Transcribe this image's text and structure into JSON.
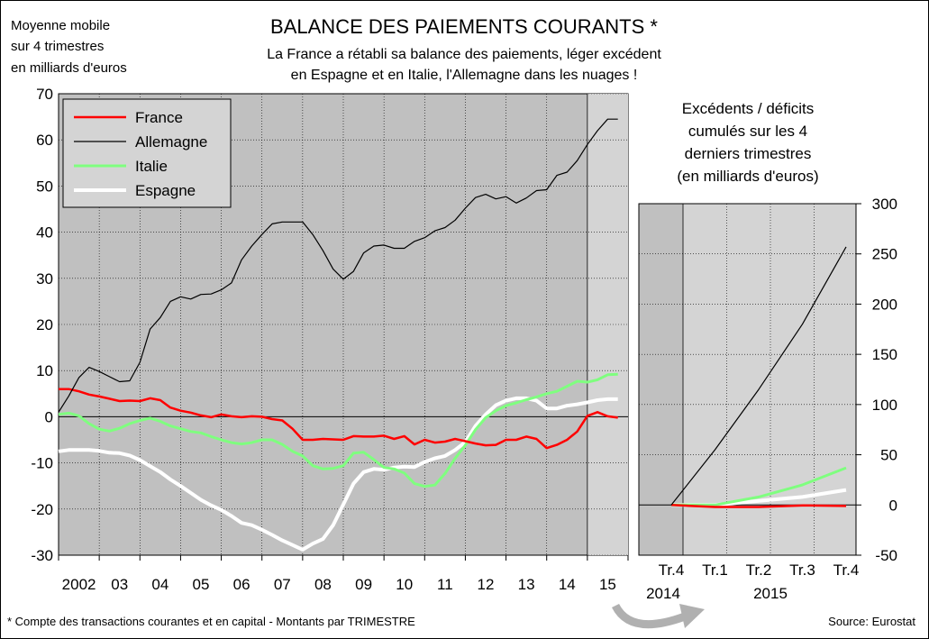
{
  "header": {
    "title": "BALANCE DES PAIEMENTS COURANTS *",
    "subtitle_line1": "La France a rétabli sa balance des paiements, léger excédent",
    "subtitle_line2": "en Espagne et en Italie, l'Allemagne dans les nuages !",
    "unit_label_line1": "Moyenne mobile",
    "unit_label_line2": "sur 4 trimestres",
    "unit_label_line3": "en milliards d'euros"
  },
  "footer": {
    "note": "* Compte des transactions courantes et en capital - Montants par TRIMESTRE",
    "source": "Source: Eurostat"
  },
  "colors": {
    "France": "#ff0000",
    "Allemagne": "#000000",
    "Italie": "#7fff7f",
    "Espagne": "#ffffff",
    "plot_bg": "#c0c0c0",
    "shade_bg": "#d4d4d4"
  },
  "chart_data": [
    {
      "type": "line",
      "title": "",
      "ylabel": "Moyenne mobile sur 4 trimestres en milliards d'euros",
      "ylim": [
        -30,
        70
      ],
      "yticks": [
        70,
        60,
        50,
        40,
        30,
        20,
        10,
        0,
        -10,
        -20,
        -30
      ],
      "xlim": [
        2002.0,
        2016.0
      ],
      "x_tick_labels": [
        "2002",
        "03",
        "04",
        "05",
        "06",
        "07",
        "08",
        "09",
        "10",
        "11",
        "12",
        "13",
        "14",
        "15"
      ],
      "grid": true,
      "legend": "top-left",
      "shaded_from": 2015.0,
      "series": [
        {
          "name": "France",
          "x": [
            2002.0,
            2002.25,
            2002.5,
            2002.75,
            2003.0,
            2003.25,
            2003.5,
            2003.75,
            2004.0,
            2004.25,
            2004.5,
            2004.75,
            2005.0,
            2005.25,
            2005.5,
            2005.75,
            2006.0,
            2006.25,
            2006.5,
            2006.75,
            2007.0,
            2007.25,
            2007.5,
            2007.75,
            2008.0,
            2008.25,
            2008.5,
            2008.75,
            2009.0,
            2009.25,
            2009.5,
            2009.75,
            2010.0,
            2010.25,
            2010.5,
            2010.75,
            2011.0,
            2011.25,
            2011.5,
            2011.75,
            2012.0,
            2012.25,
            2012.5,
            2012.75,
            2013.0,
            2013.25,
            2013.5,
            2013.75,
            2014.0,
            2014.25,
            2014.5,
            2014.75,
            2015.0,
            2015.25,
            2015.5,
            2015.75
          ],
          "y": [
            6.0,
            6.0,
            5.5,
            4.8,
            4.4,
            3.9,
            3.4,
            3.5,
            3.4,
            4.0,
            3.6,
            2.0,
            1.3,
            0.9,
            0.3,
            -0.1,
            0.5,
            0.1,
            -0.1,
            0.1,
            0.0,
            -0.5,
            -0.8,
            -2.6,
            -5.0,
            -5.0,
            -4.8,
            -4.9,
            -5.0,
            -4.2,
            -4.3,
            -4.3,
            -4.1,
            -4.8,
            -4.2,
            -6.0,
            -5.0,
            -5.6,
            -5.4,
            -4.8,
            -5.3,
            -5.8,
            -6.2,
            -6.1,
            -5.0,
            -5.0,
            -4.3,
            -4.8,
            -6.8,
            -6.1,
            -5.0,
            -3.2,
            0.2,
            1.0,
            0.1,
            -0.2
          ]
        },
        {
          "name": "Allemagne",
          "x": [
            2002.0,
            2002.25,
            2002.5,
            2002.75,
            2003.0,
            2003.25,
            2003.5,
            2003.75,
            2004.0,
            2004.25,
            2004.5,
            2004.75,
            2005.0,
            2005.25,
            2005.5,
            2005.75,
            2006.0,
            2006.25,
            2006.5,
            2006.75,
            2007.0,
            2007.25,
            2007.5,
            2007.75,
            2008.0,
            2008.25,
            2008.5,
            2008.75,
            2009.0,
            2009.25,
            2009.5,
            2009.75,
            2010.0,
            2010.25,
            2010.5,
            2010.75,
            2011.0,
            2011.25,
            2011.5,
            2011.75,
            2012.0,
            2012.25,
            2012.5,
            2012.75,
            2013.0,
            2013.25,
            2013.5,
            2013.75,
            2014.0,
            2014.25,
            2014.5,
            2014.75,
            2015.0,
            2015.25,
            2015.5,
            2015.75
          ],
          "y": [
            1.0,
            4.5,
            8.5,
            10.7,
            9.8,
            8.7,
            7.6,
            7.8,
            11.8,
            19.0,
            21.5,
            25.0,
            26.0,
            25.5,
            26.5,
            26.6,
            27.5,
            29.0,
            34.0,
            37.0,
            39.5,
            41.8,
            42.2,
            42.2,
            42.2,
            39.5,
            36.0,
            32.0,
            29.8,
            31.5,
            35.5,
            37.0,
            37.2,
            36.5,
            36.5,
            38.0,
            38.8,
            40.3,
            41.0,
            42.6,
            45.2,
            47.5,
            48.2,
            47.2,
            47.7,
            46.3,
            47.4,
            49.0,
            49.2,
            52.3,
            53.0,
            55.5,
            59.0,
            62.0,
            64.5,
            64.5
          ]
        },
        {
          "name": "Italie",
          "x": [
            2002.0,
            2002.25,
            2002.5,
            2002.75,
            2003.0,
            2003.25,
            2003.5,
            2003.75,
            2004.0,
            2004.25,
            2004.5,
            2004.75,
            2005.0,
            2005.25,
            2005.5,
            2005.75,
            2006.0,
            2006.25,
            2006.5,
            2006.75,
            2007.0,
            2007.25,
            2007.5,
            2007.75,
            2008.0,
            2008.25,
            2008.5,
            2008.75,
            2009.0,
            2009.25,
            2009.5,
            2009.75,
            2010.0,
            2010.25,
            2010.5,
            2010.75,
            2011.0,
            2011.25,
            2011.5,
            2011.75,
            2012.0,
            2012.25,
            2012.5,
            2012.75,
            2013.0,
            2013.25,
            2013.5,
            2013.75,
            2014.0,
            2014.25,
            2014.5,
            2014.75,
            2015.0,
            2015.25,
            2015.5,
            2015.75
          ],
          "y": [
            0.5,
            0.8,
            0.2,
            -1.5,
            -2.7,
            -3.1,
            -2.5,
            -1.5,
            -0.8,
            -0.3,
            -1.0,
            -2.0,
            -2.6,
            -3.2,
            -3.5,
            -4.3,
            -5.0,
            -5.6,
            -5.9,
            -5.6,
            -5.0,
            -5.0,
            -6.0,
            -7.5,
            -8.5,
            -10.6,
            -11.3,
            -11.2,
            -10.6,
            -7.9,
            -7.7,
            -9.3,
            -11.0,
            -11.3,
            -12.2,
            -14.5,
            -15.1,
            -14.8,
            -12.3,
            -9.0,
            -6.2,
            -2.8,
            -0.2,
            1.3,
            2.4,
            3.0,
            3.7,
            4.3,
            5.0,
            5.5,
            6.6,
            7.7,
            7.5,
            8.0,
            9.1,
            9.2
          ]
        },
        {
          "name": "Espagne",
          "x": [
            2002.0,
            2002.25,
            2002.5,
            2002.75,
            2003.0,
            2003.25,
            2003.5,
            2003.75,
            2004.0,
            2004.25,
            2004.5,
            2004.75,
            2005.0,
            2005.25,
            2005.5,
            2005.75,
            2006.0,
            2006.25,
            2006.5,
            2006.75,
            2007.0,
            2007.25,
            2007.5,
            2007.75,
            2008.0,
            2008.25,
            2008.5,
            2008.75,
            2009.0,
            2009.25,
            2009.5,
            2009.75,
            2010.0,
            2010.25,
            2010.5,
            2010.75,
            2011.0,
            2011.25,
            2011.5,
            2011.75,
            2012.0,
            2012.25,
            2012.5,
            2012.75,
            2013.0,
            2013.25,
            2013.5,
            2013.75,
            2014.0,
            2014.25,
            2014.5,
            2014.75,
            2015.0,
            2015.25,
            2015.5,
            2015.75
          ],
          "y": [
            -7.5,
            -7.2,
            -7.2,
            -7.2,
            -7.4,
            -7.8,
            -7.9,
            -8.4,
            -9.4,
            -10.7,
            -12.0,
            -13.6,
            -15.0,
            -16.5,
            -18.0,
            -19.2,
            -20.2,
            -21.5,
            -23.0,
            -23.5,
            -24.5,
            -25.6,
            -26.8,
            -27.8,
            -28.8,
            -27.5,
            -26.5,
            -23.5,
            -19.0,
            -14.5,
            -12.0,
            -11.3,
            -11.5,
            -11.0,
            -10.8,
            -10.9,
            -9.8,
            -9.0,
            -8.5,
            -7.2,
            -5.5,
            -2.0,
            0.5,
            2.5,
            3.5,
            4.0,
            4.0,
            3.5,
            1.8,
            1.8,
            2.4,
            2.7,
            3.1,
            3.6,
            3.8,
            3.8
          ]
        }
      ]
    },
    {
      "type": "line",
      "title": "Excédents / déficits cumulés sur les 4 derniers trimestres (en milliards d'euros)",
      "title_lines": [
        "Excédents / déficits",
        "cumulés sur les 4",
        "derniers trimestres",
        "(en milliards d'euros)"
      ],
      "ylim": [
        -50,
        300
      ],
      "yticks": [
        300,
        250,
        200,
        150,
        100,
        50,
        0,
        -50
      ],
      "categories": [
        "Tr.4",
        "Tr.1",
        "Tr.2",
        "Tr.3",
        "Tr.4"
      ],
      "year_labels": [
        "2014",
        "2015"
      ],
      "grid": true,
      "shaded_first_quarter": true,
      "series": [
        {
          "name": "France",
          "values": [
            0,
            -2,
            -2,
            -0.5,
            -1
          ]
        },
        {
          "name": "Allemagne",
          "values": [
            0,
            55,
            115,
            180,
            257
          ]
        },
        {
          "name": "Italie",
          "values": [
            0,
            0,
            8,
            20,
            37
          ]
        },
        {
          "name": "Espagne",
          "values": [
            0,
            0,
            4,
            8,
            15
          ]
        }
      ]
    }
  ]
}
